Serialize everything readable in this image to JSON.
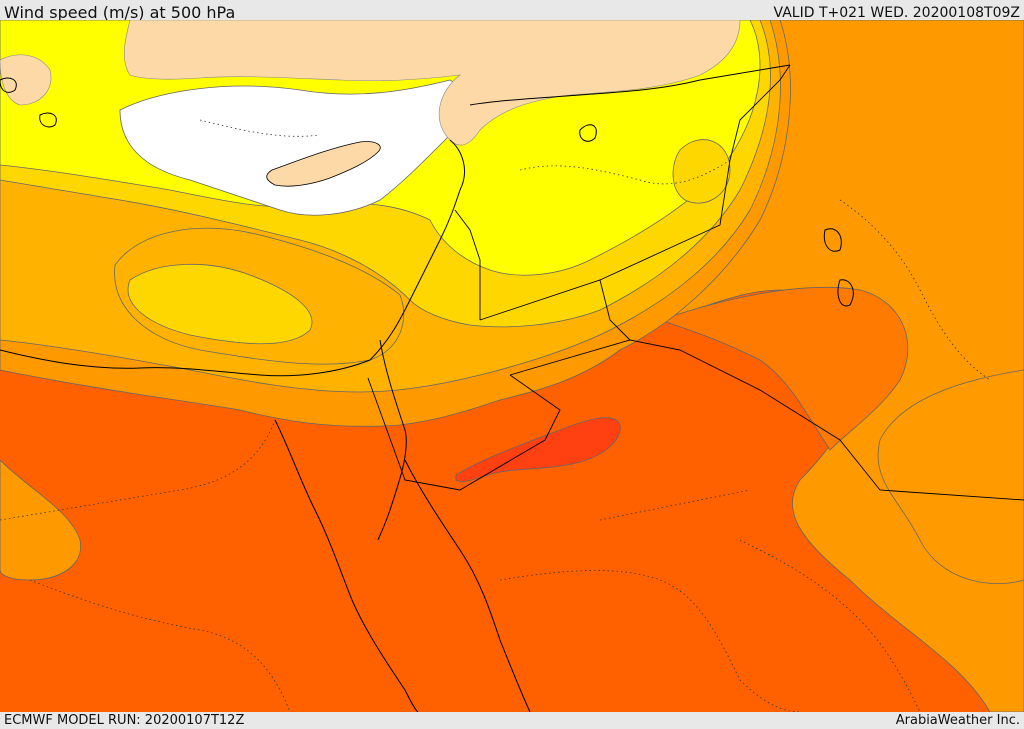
{
  "header": {
    "title": "Wind speed (m/s) at 500 hPa",
    "valid_time": "VALID T+021 WED. 20200108T09Z"
  },
  "footer": {
    "model_run": "ECMWF MODEL RUN: 20200107T12Z",
    "credit": "ArabiaWeather Inc."
  },
  "colors": {
    "background": "#ffffff",
    "land_terrain": "#fcd9a6",
    "band_yellow": "#ffff00",
    "band_gold": "#ffd700",
    "band_amber": "#ffb300",
    "band_orange": "#ff9900",
    "band_dark_orange": "#ff6000",
    "band_red_orange": "#ff4010",
    "contour": "#666666",
    "border": "#000000"
  }
}
